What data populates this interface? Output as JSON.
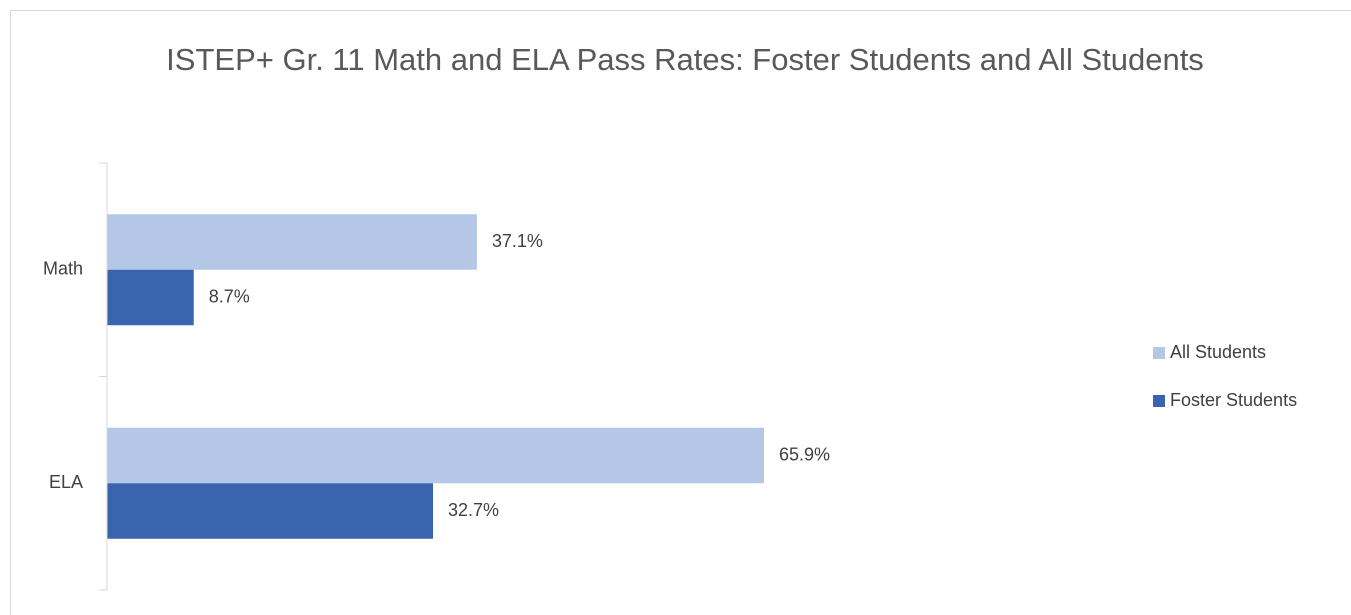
{
  "chart_data": {
    "type": "bar",
    "orientation": "horizontal",
    "title": "ISTEP+ Gr. 11 Math and ELA Pass Rates: Foster Students and All Students",
    "categories": [
      "Math",
      "ELA"
    ],
    "series": [
      {
        "name": "All Students",
        "color": "#b4c7e7",
        "values": [
          37.1,
          65.9
        ],
        "value_labels": [
          "37.1%",
          "65.9%"
        ]
      },
      {
        "name": "Foster Students",
        "color": "#3a64ad",
        "values": [
          8.7,
          32.7
        ],
        "value_labels": [
          "8.7%",
          "32.7%"
        ]
      }
    ],
    "xlim": [
      0,
      100
    ],
    "legend": "right"
  }
}
